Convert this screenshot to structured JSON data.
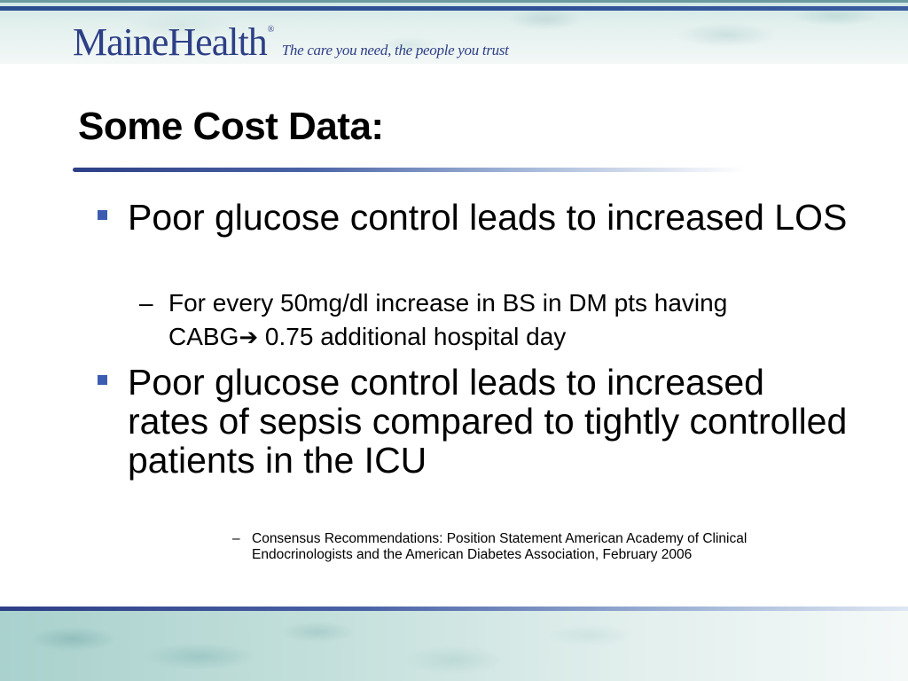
{
  "brand": {
    "name": "MaineHealth",
    "registered": "®",
    "tagline": "The care you need, the people you trust",
    "colors": {
      "brand_blue": "#2d3f86",
      "bullet_blue": "#3b5cb0",
      "band_teal": "#c3dfdb"
    }
  },
  "slide": {
    "title": "Some Cost Data:",
    "bullets": [
      {
        "text": "Poor glucose control leads to increased LOS",
        "sub": {
          "dash": "–",
          "text_before_arrow": "For every 50mg/dl increase in BS in DM pts having CABG",
          "arrow_icon": "right-arrow-icon",
          "arrow": "➔",
          "text_after_arrow": " 0.75 additional hospital day"
        }
      },
      {
        "text": "Poor glucose control leads to increased rates of sepsis compared to tightly controlled patients in the ICU"
      }
    ],
    "citation": {
      "dash": "–",
      "text": "Consensus Recommendations: Position Statement American Academy of Clinical Endocrinologists and the American Diabetes Association, February 2006"
    }
  }
}
